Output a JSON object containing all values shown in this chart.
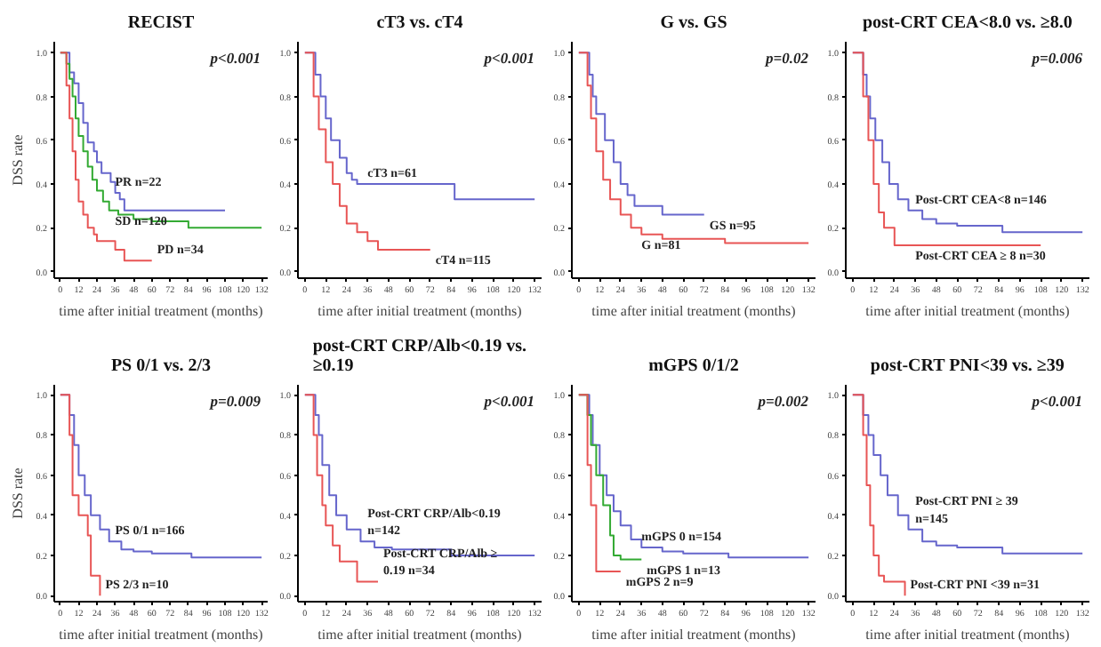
{
  "chart_data": [
    {
      "type": "step",
      "title": "RECIST",
      "ylabel": "DSS rate",
      "xlabel": "time after initial treatment (months)",
      "xlim": [
        -4,
        136
      ],
      "ylim": [
        -0.03,
        1.05
      ],
      "xticks": [
        0,
        12,
        24,
        36,
        48,
        60,
        72,
        84,
        96,
        108,
        120,
        132
      ],
      "yticks": [
        {
          "value": 0,
          "label": "0.0"
        },
        {
          "value": 0.2,
          "label": "0.2"
        },
        {
          "value": 0.4,
          "label": "0.4"
        },
        {
          "value": 0.6,
          "label": "0.6"
        },
        {
          "value": 0.8,
          "label": "0.8"
        },
        {
          "value": 1,
          "label": "1.0"
        }
      ],
      "grid": false,
      "annotations": [
        "p<0.001"
      ],
      "series": [
        {
          "name": "PR n=22",
          "color": "#6666cc",
          "x": [
            0,
            6,
            9,
            12,
            15,
            18,
            22,
            24,
            27,
            33,
            36,
            39,
            42,
            108
          ],
          "values": [
            1,
            0.91,
            0.86,
            0.77,
            0.68,
            0.59,
            0.55,
            0.5,
            0.45,
            0.41,
            0.36,
            0.33,
            0.28,
            0.28
          ]
        },
        {
          "name": "SD n=120",
          "color": "#33aa33",
          "x": [
            0,
            4,
            6,
            8,
            10,
            12,
            15,
            18,
            21,
            24,
            28,
            32,
            38,
            48,
            60,
            84,
            90,
            132
          ],
          "values": [
            1,
            0.95,
            0.88,
            0.8,
            0.7,
            0.62,
            0.55,
            0.48,
            0.42,
            0.37,
            0.32,
            0.28,
            0.26,
            0.24,
            0.23,
            0.2,
            0.2,
            0.2
          ]
        },
        {
          "name": "PD n=34",
          "color": "#e85555",
          "x": [
            0,
            4,
            6,
            8,
            10,
            12,
            15,
            18,
            22,
            24,
            27,
            36,
            42,
            60
          ],
          "values": [
            1,
            0.85,
            0.7,
            0.55,
            0.42,
            0.32,
            0.26,
            0.2,
            0.17,
            0.14,
            0.14,
            0.1,
            0.05,
            0.05
          ]
        }
      ]
    },
    {
      "type": "step",
      "title": "cT3 vs. cT4",
      "xlabel": "time after initial treatment (months)",
      "xlim": [
        -4,
        136
      ],
      "ylim": [
        -0.03,
        1.05
      ],
      "xticks": [
        0,
        12,
        24,
        36,
        48,
        60,
        72,
        84,
        96,
        108,
        120,
        132
      ],
      "yticks": [
        {
          "value": 0,
          "label": "0.0"
        },
        {
          "value": 0.2,
          "label": "0.2"
        },
        {
          "value": 0.4,
          "label": "0.4"
        },
        {
          "value": 0.6,
          "label": "0.6"
        },
        {
          "value": 0.8,
          "label": "0.8"
        },
        {
          "value": 1,
          "label": "1.0"
        }
      ],
      "grid": false,
      "annotations": [
        "p<0.001"
      ],
      "series": [
        {
          "name": "cT3 n=61",
          "color": "#6666cc",
          "x": [
            0,
            6,
            9,
            12,
            15,
            20,
            24,
            27,
            30,
            36,
            86,
            132
          ],
          "values": [
            1,
            0.9,
            0.8,
            0.7,
            0.6,
            0.52,
            0.45,
            0.42,
            0.4,
            0.4,
            0.33,
            0.33
          ]
        },
        {
          "name": "cT4 n=115",
          "color": "#e85555",
          "x": [
            0,
            5,
            8,
            12,
            16,
            20,
            24,
            30,
            36,
            42,
            48,
            72
          ],
          "values": [
            1,
            0.8,
            0.65,
            0.5,
            0.4,
            0.3,
            0.22,
            0.18,
            0.14,
            0.1,
            0.1,
            0.1
          ]
        }
      ]
    },
    {
      "type": "step",
      "title": "G vs. GS",
      "xlabel": "time after initial treatment (months)",
      "xlim": [
        -4,
        136
      ],
      "ylim": [
        -0.03,
        1.05
      ],
      "xticks": [
        0,
        12,
        24,
        36,
        48,
        60,
        72,
        84,
        96,
        108,
        120,
        132
      ],
      "yticks": [
        {
          "value": 0,
          "label": "0.0"
        },
        {
          "value": 0.2,
          "label": "0.2"
        },
        {
          "value": 0.4,
          "label": "0.4"
        },
        {
          "value": 0.6,
          "label": "0.6"
        },
        {
          "value": 0.8,
          "label": "0.8"
        },
        {
          "value": 1,
          "label": "1.0"
        }
      ],
      "grid": false,
      "annotations": [
        "p=0.02"
      ],
      "series": [
        {
          "name": "GS n=95",
          "color": "#6666cc",
          "x": [
            0,
            6,
            8,
            10,
            15,
            20,
            24,
            28,
            32,
            40,
            48,
            72
          ],
          "values": [
            1,
            0.9,
            0.8,
            0.72,
            0.6,
            0.5,
            0.4,
            0.35,
            0.3,
            0.3,
            0.26,
            0.26
          ]
        },
        {
          "name": "G n=81",
          "color": "#e85555",
          "x": [
            0,
            5,
            7,
            10,
            14,
            18,
            24,
            30,
            36,
            48,
            60,
            84,
            132
          ],
          "values": [
            1,
            0.85,
            0.7,
            0.55,
            0.42,
            0.33,
            0.26,
            0.2,
            0.17,
            0.15,
            0.15,
            0.13,
            0.13
          ]
        }
      ]
    },
    {
      "type": "step",
      "title": "post-CRT CEA<8.0 vs. ≥8.0",
      "xlabel": "time after initial treatment (months)",
      "xlim": [
        -4,
        136
      ],
      "ylim": [
        -0.03,
        1.05
      ],
      "xticks": [
        0,
        12,
        24,
        36,
        48,
        60,
        72,
        84,
        96,
        108,
        120,
        132
      ],
      "yticks": [
        {
          "value": 0,
          "label": "0.0"
        },
        {
          "value": 0.2,
          "label": "0.2"
        },
        {
          "value": 0.4,
          "label": "0.4"
        },
        {
          "value": 0.6,
          "label": "0.6"
        },
        {
          "value": 0.8,
          "label": "0.8"
        },
        {
          "value": 1,
          "label": "1.0"
        }
      ],
      "grid": false,
      "annotations": [
        "p=0.006"
      ],
      "series": [
        {
          "name": "Post-CRT CEA<8 n=146",
          "color": "#6666cc",
          "x": [
            0,
            6,
            8,
            10,
            13,
            17,
            21,
            26,
            32,
            40,
            48,
            60,
            80,
            86,
            132
          ],
          "values": [
            1,
            0.9,
            0.8,
            0.7,
            0.6,
            0.5,
            0.4,
            0.33,
            0.28,
            0.24,
            0.22,
            0.21,
            0.21,
            0.18,
            0.18
          ]
        },
        {
          "name": "Post-CRT CEA ≥ 8 n=30",
          "color": "#e85555",
          "x": [
            0,
            6,
            9,
            12,
            15,
            18,
            24,
            27,
            108
          ],
          "values": [
            1,
            0.8,
            0.6,
            0.4,
            0.27,
            0.2,
            0.12,
            0.12,
            0.12
          ]
        }
      ]
    },
    {
      "type": "step",
      "title": "PS 0/1 vs. 2/3",
      "ylabel": "DSS rate",
      "xlabel": "time after initial treatment (months)",
      "xlim": [
        -4,
        136
      ],
      "ylim": [
        -0.03,
        1.05
      ],
      "xticks": [
        0,
        12,
        24,
        36,
        48,
        60,
        72,
        84,
        96,
        108,
        120,
        132
      ],
      "yticks": [
        {
          "value": 0,
          "label": "0.0"
        },
        {
          "value": 0.2,
          "label": "0.2"
        },
        {
          "value": 0.4,
          "label": "0.4"
        },
        {
          "value": 0.6,
          "label": "0.6"
        },
        {
          "value": 0.8,
          "label": "0.8"
        },
        {
          "value": 1,
          "label": "1.0"
        }
      ],
      "grid": false,
      "annotations": [
        "p=0.009"
      ],
      "series": [
        {
          "name": "PS 0/1 n=166",
          "color": "#6666cc",
          "x": [
            0,
            6,
            9,
            12,
            16,
            20,
            26,
            32,
            40,
            48,
            60,
            84,
            86,
            132
          ],
          "values": [
            1,
            0.9,
            0.75,
            0.6,
            0.5,
            0.4,
            0.33,
            0.27,
            0.23,
            0.22,
            0.21,
            0.21,
            0.19,
            0.19
          ]
        },
        {
          "name": "PS 2/3 n=10",
          "color": "#e85555",
          "x": [
            0,
            6,
            8,
            12,
            18,
            20,
            24,
            26
          ],
          "values": [
            1,
            0.8,
            0.5,
            0.4,
            0.3,
            0.1,
            0.1,
            0
          ]
        }
      ]
    },
    {
      "type": "step",
      "title": "post-CRT CRP/Alb<0.19 vs. ≥0.19",
      "xlabel": "time after initial treatment (months)",
      "xlim": [
        -4,
        136
      ],
      "ylim": [
        -0.03,
        1.05
      ],
      "xticks": [
        0,
        12,
        24,
        36,
        48,
        60,
        72,
        84,
        96,
        108,
        120,
        132
      ],
      "yticks": [
        {
          "value": 0,
          "label": "0.0"
        },
        {
          "value": 0.2,
          "label": "0.2"
        },
        {
          "value": 0.4,
          "label": "0.4"
        },
        {
          "value": 0.6,
          "label": "0.6"
        },
        {
          "value": 0.8,
          "label": "0.8"
        },
        {
          "value": 1,
          "label": "1.0"
        }
      ],
      "grid": false,
      "annotations": [
        "p<0.001"
      ],
      "series": [
        {
          "name": "Post-CRT CRP/Alb<0.19 n=142",
          "color": "#6666cc",
          "x": [
            0,
            6,
            8,
            10,
            14,
            18,
            24,
            32,
            40,
            50,
            72,
            84,
            132
          ],
          "values": [
            1,
            0.9,
            0.8,
            0.65,
            0.5,
            0.4,
            0.33,
            0.27,
            0.24,
            0.23,
            0.23,
            0.2,
            0.2
          ]
        },
        {
          "name": "Post-CRT CRP/Alb ≥ 0.19 n=34",
          "color": "#e85555",
          "x": [
            0,
            5,
            7,
            10,
            12,
            16,
            20,
            24,
            30,
            42
          ],
          "values": [
            1,
            0.8,
            0.6,
            0.45,
            0.35,
            0.25,
            0.17,
            0.17,
            0.07,
            0.07
          ]
        }
      ]
    },
    {
      "type": "step",
      "title": "mGPS 0/1/2",
      "xlabel": "time after initial treatment (months)",
      "xlim": [
        -4,
        136
      ],
      "ylim": [
        -0.03,
        1.05
      ],
      "xticks": [
        0,
        12,
        24,
        36,
        48,
        60,
        72,
        84,
        96,
        108,
        120,
        132
      ],
      "yticks": [
        {
          "value": 0,
          "label": "0.0"
        },
        {
          "value": 0.2,
          "label": "0.2"
        },
        {
          "value": 0.4,
          "label": "0.4"
        },
        {
          "value": 0.6,
          "label": "0.6"
        },
        {
          "value": 0.8,
          "label": "0.8"
        },
        {
          "value": 1,
          "label": "1.0"
        }
      ],
      "grid": false,
      "annotations": [
        "p=0.002"
      ],
      "series": [
        {
          "name": "mGPS 0 n=154",
          "color": "#6666cc",
          "x": [
            0,
            6,
            8,
            12,
            16,
            20,
            24,
            30,
            36,
            48,
            60,
            84,
            86,
            132
          ],
          "values": [
            1,
            0.9,
            0.75,
            0.6,
            0.5,
            0.42,
            0.35,
            0.28,
            0.24,
            0.22,
            0.21,
            0.21,
            0.19,
            0.19
          ]
        },
        {
          "name": "mGPS 1 n=13",
          "color": "#33aa33",
          "x": [
            0,
            5,
            7,
            10,
            14,
            18,
            20,
            24,
            26,
            36
          ],
          "values": [
            1,
            0.9,
            0.75,
            0.6,
            0.45,
            0.3,
            0.2,
            0.18,
            0.18,
            0.18
          ]
        },
        {
          "name": "mGPS 2 n=9",
          "color": "#e85555",
          "x": [
            0,
            5,
            7,
            10,
            12,
            24
          ],
          "values": [
            1,
            0.65,
            0.45,
            0.12,
            0.12,
            0.12
          ]
        }
      ]
    },
    {
      "type": "step",
      "title": "post-CRT PNI<39 vs. ≥39",
      "xlabel": "time after initial treatment (months)",
      "xlim": [
        -4,
        136
      ],
      "ylim": [
        -0.03,
        1.05
      ],
      "xticks": [
        0,
        12,
        24,
        36,
        48,
        60,
        72,
        84,
        96,
        108,
        120,
        132
      ],
      "yticks": [
        {
          "value": 0,
          "label": "0.0"
        },
        {
          "value": 0.2,
          "label": "0.2"
        },
        {
          "value": 0.4,
          "label": "0.4"
        },
        {
          "value": 0.6,
          "label": "0.6"
        },
        {
          "value": 0.8,
          "label": "0.8"
        },
        {
          "value": 1,
          "label": "1.0"
        }
      ],
      "grid": false,
      "annotations": [
        "p<0.001"
      ],
      "series": [
        {
          "name": "Post-CRT PNI ≥ 39 n=145",
          "color": "#6666cc",
          "x": [
            0,
            6,
            9,
            12,
            16,
            20,
            26,
            32,
            40,
            48,
            60,
            84,
            86,
            132
          ],
          "values": [
            1,
            0.9,
            0.8,
            0.7,
            0.6,
            0.5,
            0.4,
            0.33,
            0.27,
            0.25,
            0.24,
            0.24,
            0.21,
            0.21
          ]
        },
        {
          "name": "Post-CRT PNI <39 n=31",
          "color": "#e85555",
          "x": [
            0,
            6,
            8,
            10,
            12,
            15,
            18,
            20,
            30
          ],
          "values": [
            1,
            0.8,
            0.55,
            0.35,
            0.2,
            0.1,
            0.07,
            0.07,
            0
          ]
        }
      ]
    }
  ]
}
